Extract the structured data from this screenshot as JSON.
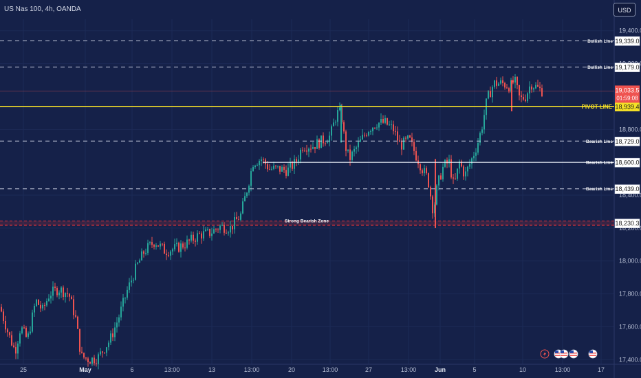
{
  "header": {
    "symbol": "US Nas 100, 4h, OANDA",
    "currency": "USD"
  },
  "colors": {
    "background": "#152149",
    "bull": "#26a69a",
    "bear": "#ef5350",
    "pivot": "#f5e027",
    "zone": "#d8323a",
    "text": "#d6dbe8"
  },
  "chart_data": {
    "type": "candlestick",
    "title": "",
    "xlabel": "",
    "ylabel": "",
    "ylim": [
      17372,
      19470
    ],
    "yticks": [
      {
        "value": 19400,
        "label": "19,400.0"
      },
      {
        "value": 19200,
        "label": "19,200.0"
      },
      {
        "value": 18800,
        "label": "18,800.0"
      },
      {
        "value": 18400,
        "label": "18,400.0"
      },
      {
        "value": 18200,
        "label": "18,200.0"
      },
      {
        "value": 18000,
        "label": "18,000.0"
      },
      {
        "value": 17800,
        "label": "17,800.0"
      },
      {
        "value": 17600,
        "label": "17,600.0"
      },
      {
        "value": 17400,
        "label": "17,400.0"
      }
    ],
    "xticks": [
      "25",
      "May",
      "6",
      "13:00",
      "13",
      "13:00",
      "20",
      "13:00",
      "27",
      "13:00",
      "Jun",
      "5",
      "10",
      "13:00",
      "17"
    ],
    "levels": [
      {
        "name": "Bullish Line",
        "value": 19339,
        "label": "19,339.0",
        "style": "dashed"
      },
      {
        "name": "Bullish Line",
        "value": 19179,
        "label": "19,179.0",
        "style": "dashed"
      },
      {
        "name": "PIVOT LINE",
        "value": 18939.4,
        "label": "18,939.4",
        "style": "pivot"
      },
      {
        "name": "Bearish Line",
        "value": 18729,
        "label": "18,729.0",
        "style": "dashed"
      },
      {
        "name": "Bearish Line",
        "value": 18600,
        "label": "18,600.0",
        "style": "solid"
      },
      {
        "name": "Bearish Line",
        "value": 18439,
        "label": "18,439.0",
        "style": "dashed"
      },
      {
        "name": "Strong Bearish Zone",
        "value": 18230.3,
        "label": "18,230.3",
        "style": "zone"
      }
    ],
    "last_price": {
      "value": 19033.5,
      "label": "19,033.5",
      "countdown": "01:59:08"
    },
    "path": [
      [
        0,
        17720
      ],
      [
        12,
        17560
      ],
      [
        22,
        17450
      ],
      [
        30,
        17600
      ],
      [
        40,
        17520
      ],
      [
        52,
        17760
      ],
      [
        62,
        17700
      ],
      [
        72,
        17800
      ],
      [
        85,
        17830
      ],
      [
        100,
        17800
      ],
      [
        110,
        17650
      ],
      [
        118,
        17420
      ],
      [
        130,
        17400
      ],
      [
        142,
        17410
      ],
      [
        160,
        17520
      ],
      [
        172,
        17650
      ],
      [
        185,
        17820
      ],
      [
        198,
        17960
      ],
      [
        210,
        18060
      ],
      [
        225,
        18120
      ],
      [
        240,
        18060
      ],
      [
        258,
        18080
      ],
      [
        272,
        18110
      ],
      [
        290,
        18160
      ],
      [
        305,
        18170
      ],
      [
        320,
        18210
      ],
      [
        335,
        18200
      ],
      [
        350,
        18280
      ],
      [
        360,
        18450
      ],
      [
        368,
        18600
      ],
      [
        380,
        18620
      ],
      [
        392,
        18560
      ],
      [
        405,
        18560
      ],
      [
        418,
        18550
      ],
      [
        430,
        18600
      ],
      [
        440,
        18700
      ],
      [
        455,
        18700
      ],
      [
        468,
        18730
      ],
      [
        480,
        18760
      ],
      [
        490,
        18900
      ],
      [
        496,
        18900
      ],
      [
        502,
        18700
      ],
      [
        508,
        18620
      ],
      [
        520,
        18700
      ],
      [
        535,
        18800
      ],
      [
        548,
        18840
      ],
      [
        560,
        18840
      ],
      [
        572,
        18800
      ],
      [
        582,
        18700
      ],
      [
        595,
        18740
      ],
      [
        605,
        18640
      ],
      [
        614,
        18560
      ],
      [
        622,
        18500
      ],
      [
        630,
        18300
      ],
      [
        636,
        18460
      ],
      [
        645,
        18580
      ],
      [
        653,
        18600
      ],
      [
        660,
        18450
      ],
      [
        668,
        18600
      ],
      [
        676,
        18520
      ],
      [
        686,
        18620
      ],
      [
        694,
        18710
      ],
      [
        700,
        18800
      ],
      [
        708,
        18980
      ],
      [
        718,
        19080
      ],
      [
        730,
        19080
      ],
      [
        742,
        19060
      ],
      [
        748,
        19100
      ],
      [
        756,
        18980
      ],
      [
        764,
        19000
      ],
      [
        772,
        19080
      ],
      [
        782,
        19050
      ],
      [
        790,
        19030
      ]
    ]
  },
  "bottom_icons": [
    "lightning-icon",
    "us-flag-icon",
    "us-flag-icon",
    "us-flag-icon",
    "us-flag-icon"
  ]
}
